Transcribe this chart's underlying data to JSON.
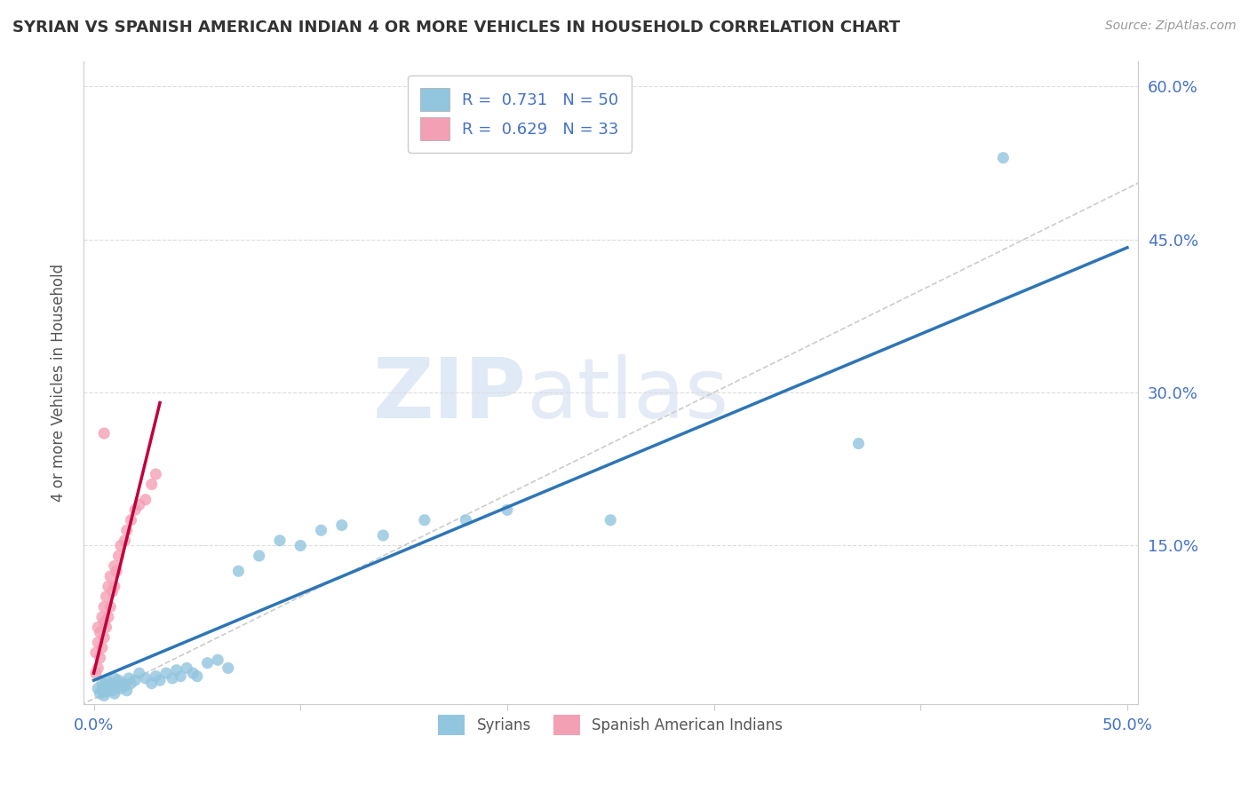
{
  "title": "SYRIAN VS SPANISH AMERICAN INDIAN 4 OR MORE VEHICLES IN HOUSEHOLD CORRELATION CHART",
  "source": "Source: ZipAtlas.com",
  "ylabel": "4 or more Vehicles in Household",
  "xlim": [
    -0.005,
    0.505
  ],
  "ylim": [
    -0.005,
    0.625
  ],
  "ytick_vals": [
    0.0,
    0.15,
    0.3,
    0.45,
    0.6
  ],
  "ytick_labels": [
    "",
    "15.0%",
    "30.0%",
    "45.0%",
    "60.0%"
  ],
  "xtick_vals": [
    0.0,
    0.1,
    0.2,
    0.3,
    0.4,
    0.5
  ],
  "xtick_labels": [
    "0.0%",
    "",
    "",
    "",
    "",
    "50.0%"
  ],
  "watermark_zip": "ZIP",
  "watermark_atlas": "atlas",
  "legend_r1": "R =  0.731   N = 50",
  "legend_r2": "R =  0.629   N = 33",
  "color_blue": "#92C5DE",
  "color_pink": "#F4A0B4",
  "line_blue": "#2E75B6",
  "line_pink": "#C0003C",
  "diag_color": "#CCCCCC",
  "background_color": "#FFFFFF",
  "grid_color": "#DDDDDD",
  "syrians_x": [
    0.002,
    0.003,
    0.004,
    0.004,
    0.005,
    0.005,
    0.006,
    0.006,
    0.007,
    0.008,
    0.009,
    0.01,
    0.01,
    0.011,
    0.012,
    0.013,
    0.014,
    0.015,
    0.016,
    0.017,
    0.018,
    0.02,
    0.022,
    0.025,
    0.028,
    0.03,
    0.032,
    0.035,
    0.038,
    0.04,
    0.042,
    0.045,
    0.048,
    0.05,
    0.055,
    0.06,
    0.065,
    0.07,
    0.08,
    0.09,
    0.1,
    0.11,
    0.12,
    0.14,
    0.16,
    0.18,
    0.2,
    0.25,
    0.37,
    0.44
  ],
  "syrians_y": [
    0.01,
    0.005,
    0.008,
    0.015,
    0.003,
    0.012,
    0.007,
    0.018,
    0.01,
    0.015,
    0.008,
    0.02,
    0.005,
    0.012,
    0.018,
    0.01,
    0.015,
    0.012,
    0.008,
    0.02,
    0.015,
    0.018,
    0.025,
    0.02,
    0.015,
    0.022,
    0.018,
    0.025,
    0.02,
    0.028,
    0.022,
    0.03,
    0.025,
    0.022,
    0.035,
    0.038,
    0.03,
    0.125,
    0.14,
    0.155,
    0.15,
    0.165,
    0.17,
    0.16,
    0.175,
    0.175,
    0.185,
    0.175,
    0.25,
    0.53
  ],
  "spanish_x": [
    0.001,
    0.001,
    0.002,
    0.002,
    0.002,
    0.003,
    0.003,
    0.004,
    0.004,
    0.005,
    0.005,
    0.005,
    0.006,
    0.006,
    0.007,
    0.007,
    0.008,
    0.008,
    0.009,
    0.01,
    0.01,
    0.011,
    0.012,
    0.013,
    0.015,
    0.016,
    0.018,
    0.02,
    0.022,
    0.025,
    0.028,
    0.03,
    0.005
  ],
  "spanish_y": [
    0.025,
    0.045,
    0.03,
    0.055,
    0.07,
    0.04,
    0.065,
    0.05,
    0.08,
    0.06,
    0.075,
    0.09,
    0.07,
    0.1,
    0.08,
    0.11,
    0.09,
    0.12,
    0.105,
    0.11,
    0.13,
    0.125,
    0.14,
    0.15,
    0.155,
    0.165,
    0.175,
    0.185,
    0.19,
    0.195,
    0.21,
    0.22,
    0.26
  ],
  "blue_line_x": [
    0.0,
    0.5
  ],
  "blue_line_y": [
    0.018,
    0.442
  ],
  "pink_line_x": [
    0.0,
    0.032
  ],
  "pink_line_y": [
    0.025,
    0.29
  ]
}
